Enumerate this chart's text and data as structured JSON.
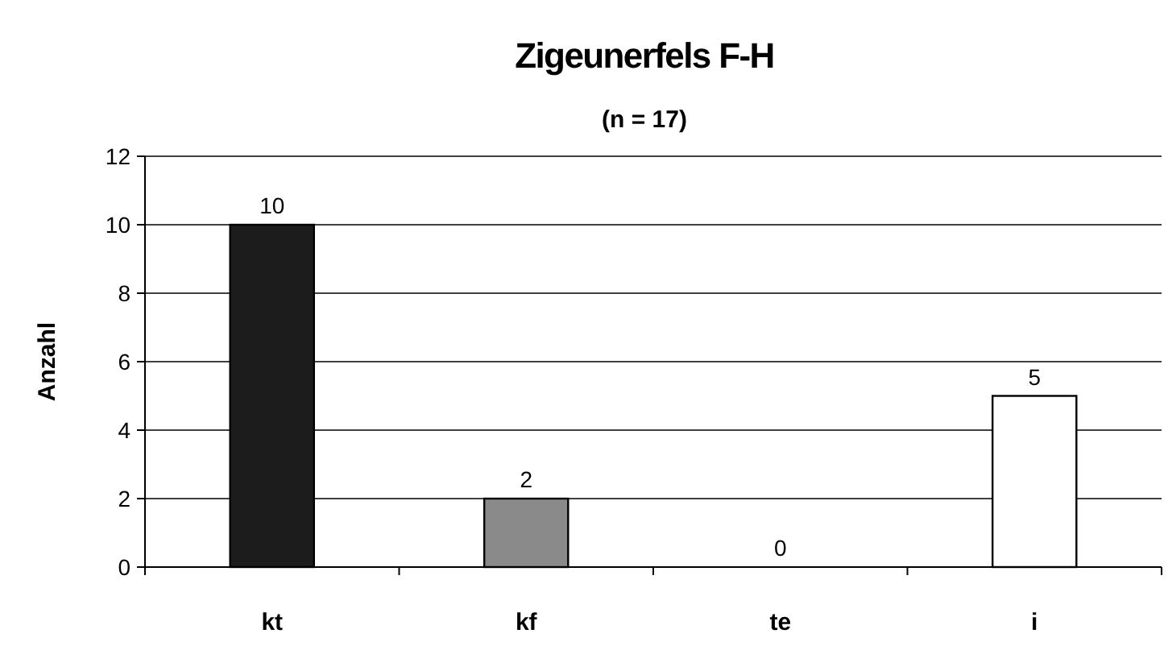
{
  "chart_data": {
    "type": "bar",
    "title": "Zigeunerfels F-H",
    "subtitle": "(n = 17)",
    "ylabel": "Anzahl",
    "categories": [
      "kt",
      "kf",
      "te",
      "i"
    ],
    "values": [
      10,
      2,
      0,
      5
    ],
    "colors": [
      "#1c1c1c",
      "#8a8a8a",
      "#ffffff",
      "#ffffff"
    ],
    "ylim": [
      0,
      12
    ],
    "yticks": [
      0,
      2,
      4,
      6,
      8,
      10,
      12
    ],
    "grid": "y",
    "data_labels": true
  }
}
